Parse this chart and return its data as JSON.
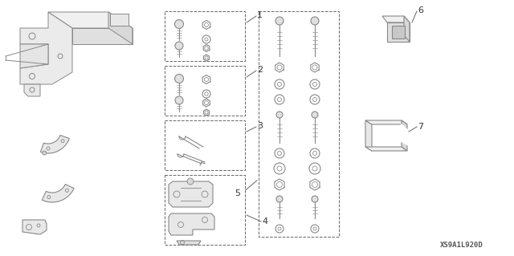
{
  "background_color": "#ffffff",
  "watermark": "XS9A1L920D",
  "lc": "#888888",
  "dc": "#666666",
  "fig_width": 6.4,
  "fig_height": 3.19,
  "dpi": 100
}
